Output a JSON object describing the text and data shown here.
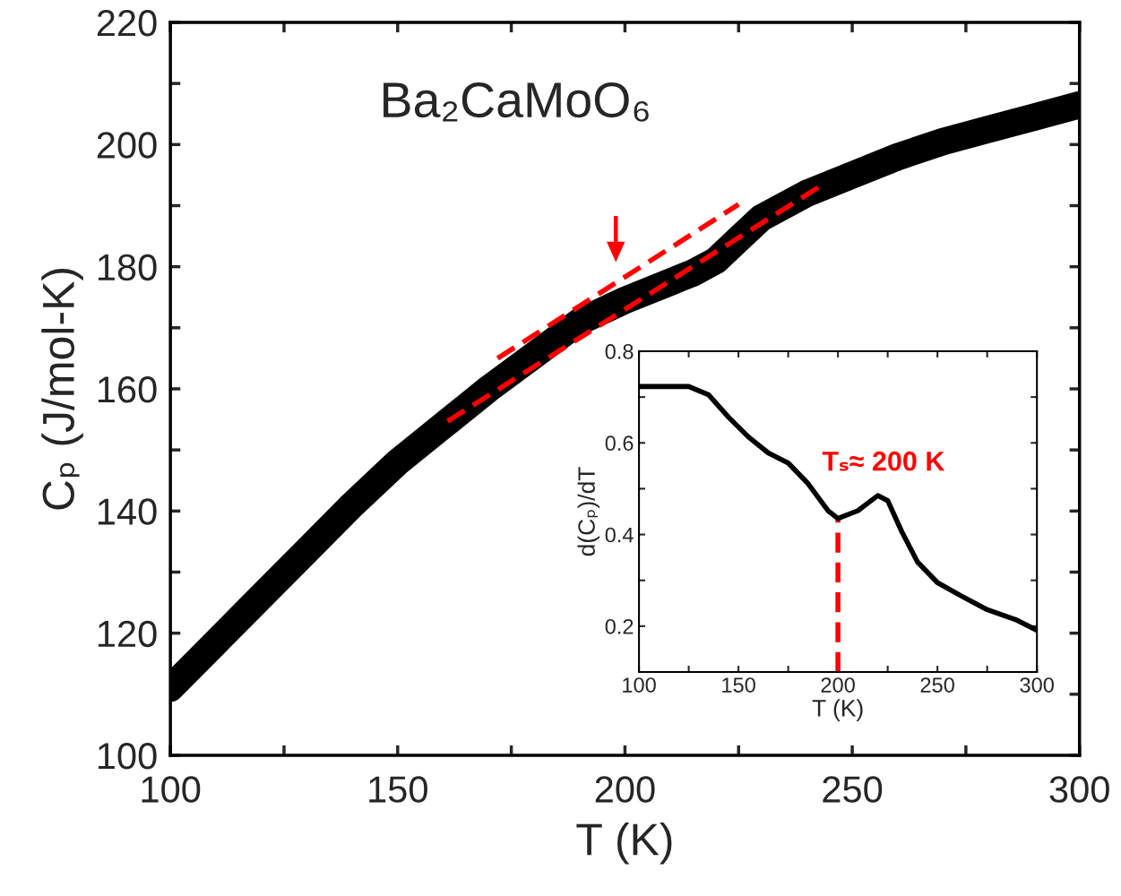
{
  "chart_data": [
    {
      "type": "line",
      "title": "Ba₂CaMoO₆",
      "xlabel": "T (K)",
      "ylabel": "Cₚ (J/mol-K)",
      "x": [
        100,
        110,
        120,
        130,
        140,
        150,
        160,
        170,
        180,
        190,
        200,
        210,
        215,
        220,
        225,
        230,
        240,
        250,
        260,
        270,
        280,
        290,
        300
      ],
      "series": [
        {
          "color": "#000000",
          "values": [
            111,
            118.5,
            126,
            133.5,
            141,
            148,
            154,
            160,
            165.5,
            171,
            174.5,
            177.5,
            179,
            181,
            184.5,
            188,
            192,
            195,
            198,
            200.5,
            202.5,
            204.5,
            206.5
          ]
        },
        {
          "type": "line",
          "color": "#ff0000",
          "line_style": "dashed",
          "x": [
            161,
            243
          ],
          "values": [
            154.7,
            193.2
          ]
        },
        {
          "type": "line",
          "color": "#ff0000",
          "line_style": "dashed",
          "x": [
            172,
            225
          ],
          "values": [
            165,
            190.2
          ]
        }
      ],
      "xlim": [
        100,
        300
      ],
      "ylim": [
        100,
        220
      ],
      "xticks": [
        100,
        {
          "value": 125,
          "label": null
        },
        150,
        {
          "value": 175,
          "label": null
        },
        200,
        {
          "value": 225,
          "label": null
        },
        250,
        {
          "value": 275,
          "label": null
        },
        300
      ],
      "yticks": [
        100,
        {
          "value": 110,
          "label": null
        },
        120,
        {
          "value": 130,
          "label": null
        },
        140,
        {
          "value": 150,
          "label": null
        },
        160,
        {
          "value": 170,
          "label": null
        },
        180,
        {
          "value": 190,
          "label": null
        },
        200,
        {
          "value": 210,
          "label": null
        },
        220
      ],
      "grid": false,
      "legend": false
    },
    {
      "type": "line",
      "xlabel": "T (K)",
      "ylabel": "d(Cₚ)/dT",
      "x": [
        100,
        125,
        135,
        145,
        155,
        165,
        175,
        185,
        195,
        200,
        210,
        220,
        225,
        232,
        240,
        250,
        262,
        275,
        290,
        300
      ],
      "series": [
        {
          "color": "#000000",
          "values": [
            0.723,
            0.723,
            0.705,
            0.656,
            0.613,
            0.578,
            0.556,
            0.511,
            0.452,
            0.435,
            0.452,
            0.485,
            0.474,
            0.407,
            0.34,
            0.295,
            0.266,
            0.236,
            0.213,
            0.191
          ]
        }
      ],
      "ref_lines": [
        {
          "axis": "x",
          "value": 200,
          "color": "#ff0000",
          "line_style": "dashed"
        }
      ],
      "annotations": [
        "Tₛ≈ 200 K"
      ],
      "xlim": [
        100,
        300
      ],
      "ylim": [
        0.1,
        0.8
      ],
      "xticks": [
        100,
        {
          "value": 125,
          "label": null
        },
        150,
        {
          "value": 175,
          "label": null
        },
        200,
        {
          "value": 225,
          "label": null
        },
        250,
        {
          "value": 275,
          "label": null
        },
        300
      ],
      "yticks": [
        0.2,
        {
          "value": 0.3,
          "label": null
        },
        0.4,
        {
          "value": 0.5,
          "label": null
        },
        0.6,
        {
          "value": 0.7,
          "label": null
        },
        0.8
      ],
      "grid": false,
      "legend": false
    }
  ]
}
